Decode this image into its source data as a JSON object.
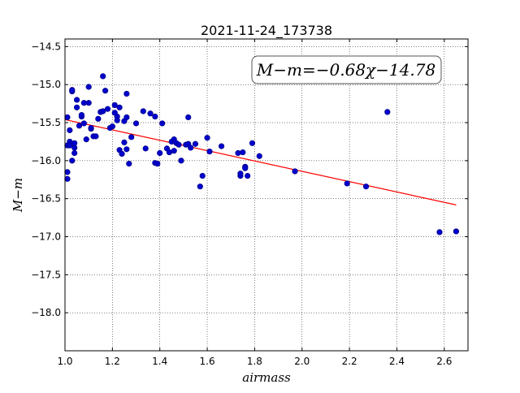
{
  "chart_data": {
    "type": "scatter",
    "title": "2021-11-24_173738",
    "xlabel": "airmass",
    "ylabel": "M−m",
    "xlim": [
      1.0,
      2.7
    ],
    "ylim": [
      -18.5,
      -14.4
    ],
    "y_inverted": true,
    "grid": true,
    "x_ticks": [
      1.0,
      1.2,
      1.4,
      1.6,
      1.8,
      2.0,
      2.2,
      2.4,
      2.6
    ],
    "x_tick_labels": [
      "1.0",
      "1.2",
      "1.4",
      "1.6",
      "1.8",
      "2.0",
      "2.2",
      "2.4",
      "2.6"
    ],
    "y_ticks": [
      -14.5,
      -15.0,
      -15.5,
      -16.0,
      -16.5,
      -17.0,
      -17.5,
      -18.0
    ],
    "y_tick_labels": [
      "−14.5",
      "−15.0",
      "−15.5",
      "−16.0",
      "−16.5",
      "−17.0",
      "−17.5",
      "−18.0"
    ],
    "annotation": "M−m=−0.68χ−14.78",
    "annotation_position": "top-right",
    "colors": {
      "points": "#0000cc",
      "point_edge": "#00007a",
      "fit_line": "#ff0000"
    },
    "fit": {
      "slope": -0.68,
      "intercept": -14.78,
      "x_range": [
        1.0,
        2.65
      ]
    },
    "x": [
      1.01,
      1.01,
      1.01,
      1.01,
      1.02,
      1.02,
      1.02,
      1.03,
      1.03,
      1.03,
      1.04,
      1.04,
      1.04,
      1.05,
      1.05,
      1.06,
      1.07,
      1.07,
      1.08,
      1.08,
      1.09,
      1.1,
      1.1,
      1.11,
      1.11,
      1.12,
      1.13,
      1.14,
      1.15,
      1.16,
      1.16,
      1.17,
      1.18,
      1.19,
      1.2,
      1.21,
      1.21,
      1.22,
      1.22,
      1.23,
      1.23,
      1.24,
      1.25,
      1.25,
      1.26,
      1.26,
      1.26,
      1.27,
      1.28,
      1.3,
      1.33,
      1.34,
      1.36,
      1.38,
      1.38,
      1.39,
      1.4,
      1.41,
      1.43,
      1.44,
      1.45,
      1.46,
      1.46,
      1.47,
      1.48,
      1.49,
      1.51,
      1.52,
      1.52,
      1.53,
      1.55,
      1.57,
      1.58,
      1.6,
      1.61,
      1.66,
      1.73,
      1.74,
      1.74,
      1.75,
      1.76,
      1.76,
      1.77,
      1.79,
      1.82,
      1.97,
      2.19,
      2.27,
      2.36,
      2.58,
      2.65
    ],
    "y": [
      -15.43,
      -16.15,
      -16.24,
      -15.8,
      -15.6,
      -15.75,
      -15.8,
      -15.09,
      -15.07,
      -16.0,
      -15.9,
      -15.83,
      -15.77,
      -15.2,
      -15.3,
      -15.54,
      -15.42,
      -15.4,
      -15.51,
      -15.24,
      -15.72,
      -15.03,
      -15.24,
      -15.58,
      -15.57,
      -15.68,
      -15.68,
      -15.45,
      -15.36,
      -15.35,
      -14.89,
      -15.08,
      -15.32,
      -15.57,
      -15.55,
      -15.37,
      -15.27,
      -15.42,
      -15.47,
      -15.86,
      -15.3,
      -15.91,
      -15.48,
      -15.76,
      -15.43,
      -15.12,
      -15.85,
      -16.04,
      -15.69,
      -15.51,
      -15.35,
      -15.84,
      -15.38,
      -15.42,
      -16.03,
      -16.04,
      -15.9,
      -15.51,
      -15.84,
      -15.89,
      -15.75,
      -15.87,
      -15.72,
      -15.77,
      -15.79,
      -16.0,
      -15.79,
      -15.78,
      -15.43,
      -15.83,
      -15.78,
      -16.34,
      -16.2,
      -15.7,
      -15.88,
      -15.81,
      -15.9,
      -16.2,
      -16.17,
      -15.89,
      -16.08,
      -16.1,
      -16.2,
      -15.77,
      -15.94,
      -16.14,
      -16.3,
      -16.34,
      -15.36,
      -16.94,
      -16.93
    ]
  }
}
